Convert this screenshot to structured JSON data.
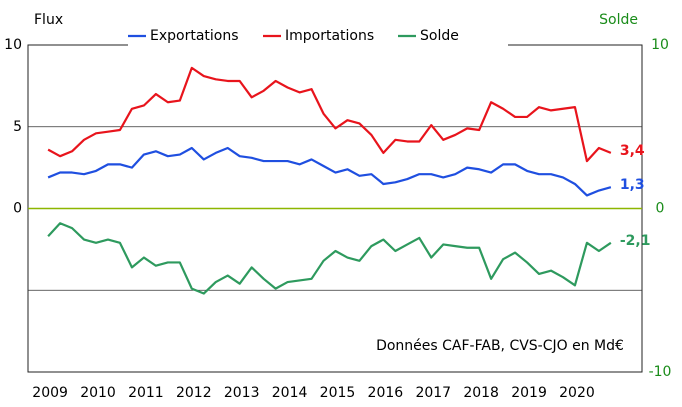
{
  "chart_data": {
    "type": "line",
    "y_label": "Flux",
    "y2_label": "Solde",
    "annotation": "Données CAF-FAB, CVS-CJO en Md€",
    "x": [
      2009,
      2009.25,
      2009.5,
      2009.75,
      2010,
      2010.25,
      2010.5,
      2010.75,
      2011,
      2011.25,
      2011.5,
      2011.75,
      2012,
      2012.25,
      2012.5,
      2012.75,
      2013,
      2013.25,
      2013.5,
      2013.75,
      2014,
      2014.25,
      2014.5,
      2014.75,
      2015,
      2015.25,
      2015.5,
      2015.75,
      2016,
      2016.25,
      2016.5,
      2016.75,
      2017,
      2017.25,
      2017.5,
      2017.75,
      2018,
      2018.25,
      2018.5,
      2018.75,
      2019,
      2019.25,
      2019.5,
      2019.75,
      2020,
      2020.25,
      2020.5,
      2020.75
    ],
    "xlim": [
      2008.58,
      2021.4
    ],
    "xticks": [
      2009,
      2010,
      2011,
      2012,
      2013,
      2014,
      2015,
      2016,
      2017,
      2018,
      2019,
      2020
    ],
    "ylim": [
      -10,
      10
    ],
    "yticks": [
      0,
      5,
      10
    ],
    "ygrid": [
      -5,
      0,
      5
    ],
    "y2lim": [
      -10,
      10
    ],
    "y2ticks": [
      -10,
      0,
      10
    ],
    "zero_line_color": "#8db600",
    "series": [
      {
        "name": "Exportations",
        "color": "#1f4fe0",
        "end_label": "1,3",
        "values": [
          1.9,
          2.2,
          2.2,
          2.1,
          2.3,
          2.7,
          2.7,
          2.5,
          3.3,
          3.5,
          3.2,
          3.3,
          3.7,
          3.0,
          3.4,
          3.7,
          3.2,
          3.1,
          2.9,
          2.9,
          2.9,
          2.7,
          3.0,
          2.6,
          2.2,
          2.4,
          2.0,
          2.1,
          1.5,
          1.6,
          1.8,
          2.1,
          2.1,
          1.9,
          2.1,
          2.5,
          2.4,
          2.2,
          2.7,
          2.7,
          2.3,
          2.1,
          2.1,
          1.9,
          1.5,
          0.8,
          1.1,
          1.3
        ]
      },
      {
        "name": "Importations",
        "color": "#e8141c",
        "end_label": "3,4",
        "values": [
          3.6,
          3.2,
          3.5,
          4.2,
          4.6,
          4.7,
          4.8,
          6.1,
          6.3,
          7.0,
          6.5,
          6.6,
          8.6,
          8.1,
          7.9,
          7.8,
          7.8,
          6.8,
          7.2,
          7.8,
          7.4,
          7.1,
          7.3,
          5.8,
          4.9,
          5.4,
          5.2,
          4.5,
          3.4,
          4.2,
          4.1,
          4.1,
          5.1,
          4.2,
          4.5,
          4.9,
          4.8,
          6.5,
          6.1,
          5.6,
          5.6,
          6.2,
          6.0,
          6.1,
          6.2,
          2.9,
          3.7,
          3.4
        ]
      },
      {
        "name": "Solde",
        "color": "#2e9a5e",
        "axis": "y2",
        "end_label": "-2,1",
        "values": [
          -1.7,
          -0.9,
          -1.2,
          -1.9,
          -2.1,
          -1.9,
          -2.1,
          -3.6,
          -3.0,
          -3.5,
          -3.3,
          -3.3,
          -4.9,
          -5.2,
          -4.5,
          -4.1,
          -4.6,
          -3.6,
          -4.3,
          -4.9,
          -4.5,
          -4.4,
          -4.3,
          -3.2,
          -2.6,
          -3.0,
          -3.2,
          -2.3,
          -1.9,
          -2.6,
          -2.2,
          -1.8,
          -3.0,
          -2.2,
          -2.3,
          -2.4,
          -2.4,
          -4.3,
          -3.1,
          -2.7,
          -3.3,
          -4.0,
          -3.8,
          -4.2,
          -4.7,
          -2.1,
          -2.6,
          -2.1
        ]
      }
    ]
  }
}
